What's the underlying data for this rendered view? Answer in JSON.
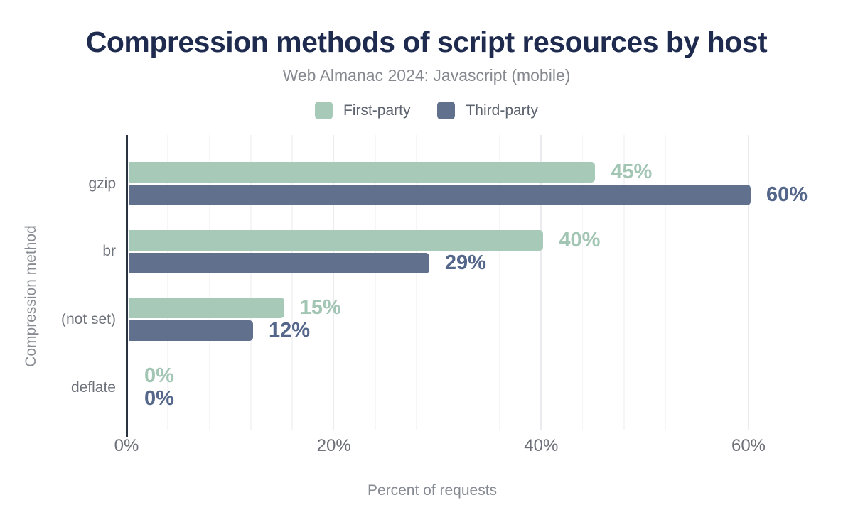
{
  "title": "Compression methods of script resources by host",
  "subtitle": "Web Almanac 2024: Javascript (mobile)",
  "legend": {
    "items": [
      {
        "label": "First-party",
        "color": "#a7cab8"
      },
      {
        "label": "Third-party",
        "color": "#61708c"
      }
    ]
  },
  "chart_data": {
    "type": "bar",
    "orientation": "horizontal",
    "title": "Compression methods of script resources by host",
    "subtitle": "Web Almanac 2024: Javascript (mobile)",
    "categories": [
      "gzip",
      "br",
      "(not set)",
      "deflate"
    ],
    "series": [
      {
        "name": "First-party",
        "color": "#a7cab8",
        "label_color": "#a3c6b4",
        "values": [
          45,
          40,
          15,
          0
        ],
        "data_labels": [
          "45%",
          "40%",
          "15%",
          "0%"
        ]
      },
      {
        "name": "Third-party",
        "color": "#61708c",
        "label_color": "#54668a",
        "values": [
          60,
          29,
          12,
          0
        ],
        "data_labels": [
          "60%",
          "29%",
          "12%",
          "0%"
        ]
      }
    ],
    "xlabel": "Percent of requests",
    "ylabel": "Compression method",
    "xlim": [
      0,
      65.5
    ],
    "xticks": [
      0,
      20,
      40,
      60
    ],
    "xtick_labels": [
      "0%",
      "20%",
      "40%",
      "60%"
    ],
    "grid": true,
    "grid_step": 4,
    "grid_minor_color": "#f5f5f7",
    "grid_major_color": "#ebebef",
    "axis_color": "#2b3240",
    "legend_position": "top"
  }
}
